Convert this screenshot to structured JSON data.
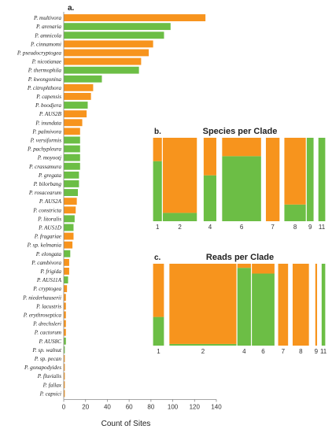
{
  "colors": {
    "orange": "#F7941D",
    "green": "#6CBE45",
    "axis": "#888888"
  },
  "chart_data": [
    {
      "type": "bar",
      "orientation": "horizontal",
      "panel_label": "a.",
      "title": "",
      "xlabel": "Count of Sites",
      "ylabel": "",
      "xlim": [
        0,
        140
      ],
      "xticks": [
        0,
        20,
        40,
        60,
        80,
        100,
        120,
        140
      ],
      "grid": false,
      "legend": "none",
      "categories": [
        "P. multivora",
        "P. arenaria",
        "P. amnicola",
        "P. cinnamomi",
        "P. pseudocryptogea",
        "P. nicotianae",
        "P. thermophila",
        "P. kwongonina",
        "P. citrophthora",
        "P. capensis",
        "P. boodjera",
        "P. AUS2B",
        "P. inundata",
        "P. palmivora",
        "P. versiformis",
        "P. pachypleura",
        "P. moyootj",
        "P. crassamura",
        "P. gregata",
        "P. bilorbang",
        "P. rosacearum",
        "P. AUS2A",
        "P. constricta",
        "P. litoralis",
        "P. AUS1D",
        "P. fragariae",
        "P. sp. kelmania",
        "P. elongata",
        "P. cambivora",
        "P. frigida",
        "P. AUS11A",
        "P. cryptogea",
        "P. niederhauserii",
        "P. lacustris",
        "P. erythroseptica",
        "P. drechsleri",
        "P. cactorum",
        "P. AUS8C",
        "P. sp. walnut",
        "P. sp. pecan",
        "P. gonapodyides",
        "P. fluvialis",
        "P. fallax",
        "P. capsici"
      ],
      "values": [
        130,
        98,
        92,
        82,
        78,
        71,
        69,
        35,
        27,
        25,
        22,
        21,
        17,
        15,
        15,
        15,
        15,
        15,
        14,
        14,
        13,
        12,
        11,
        10,
        9,
        9,
        8,
        6,
        5,
        5,
        4,
        3,
        2,
        2,
        2,
        2,
        2,
        2,
        1,
        1,
        1,
        1,
        1,
        1
      ],
      "bar_colors": [
        "orange",
        "green",
        "green",
        "orange",
        "orange",
        "orange",
        "green",
        "green",
        "orange",
        "orange",
        "green",
        "orange",
        "orange",
        "orange",
        "green",
        "green",
        "green",
        "green",
        "green",
        "green",
        "green",
        "orange",
        "orange",
        "green",
        "green",
        "orange",
        "orange",
        "green",
        "orange",
        "orange",
        "green",
        "orange",
        "orange",
        "orange",
        "orange",
        "orange",
        "orange",
        "green",
        "green",
        "orange",
        "orange",
        "orange",
        "orange",
        "orange"
      ]
    },
    {
      "type": "bar",
      "stacked": true,
      "variable_width": true,
      "panel_label": "b.",
      "title": "Species per Clade",
      "ylim": [
        0,
        1
      ],
      "categories": [
        "1",
        "2",
        "",
        "4",
        "",
        "6",
        "",
        "7",
        "",
        "8",
        "9",
        "",
        "11"
      ],
      "widths": [
        1,
        3.6,
        0.6,
        1.4,
        0.5,
        4.1,
        0.4,
        1.5,
        0.4,
        2.3,
        0.8,
        0.4,
        0.8
      ],
      "series": [
        {
          "color": "green",
          "values": [
            0.72,
            0.1,
            0,
            0.55,
            0,
            0.78,
            0,
            0,
            0,
            0.2,
            1,
            0,
            1
          ]
        },
        {
          "color": "orange",
          "values": [
            0.28,
            0.9,
            0,
            0.45,
            0,
            0.22,
            0,
            1,
            0,
            0.8,
            0,
            0,
            0
          ]
        }
      ]
    },
    {
      "type": "bar",
      "stacked": true,
      "variable_width": true,
      "panel_label": "c.",
      "title": "Reads per Clade",
      "ylim": [
        0,
        1
      ],
      "categories": [
        "1",
        "",
        "2",
        "4",
        "6",
        "",
        "7",
        "",
        "8",
        "",
        "9",
        "",
        "11"
      ],
      "widths": [
        1.3,
        0.5,
        7.5,
        1.6,
        2.6,
        0.3,
        1.2,
        0.4,
        1.9,
        0.6,
        0.3,
        0.4,
        0.5
      ],
      "series": [
        {
          "color": "green",
          "values": [
            0.35,
            0,
            0.02,
            0.95,
            0.88,
            0,
            0,
            0,
            0,
            0,
            0,
            0,
            1
          ]
        },
        {
          "color": "orange",
          "values": [
            0.65,
            0,
            0.98,
            0.05,
            0.12,
            0,
            1,
            0,
            1,
            0,
            1,
            0,
            0
          ]
        }
      ]
    }
  ]
}
